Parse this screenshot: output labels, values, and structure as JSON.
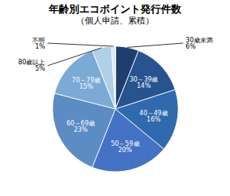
{
  "chart_data": {
    "type": "pie",
    "title": "年齢別エコポイント発行件数",
    "subtitle": "（個人申請、累積）",
    "categories": [
      "30歳未満",
      "30～39歳",
      "40～49歳",
      "50～59歳",
      "60～69歳",
      "70～79歳",
      "80歳以上",
      "不明"
    ],
    "values": [
      6,
      14,
      16,
      20,
      23,
      15,
      5,
      1
    ],
    "value_labels": [
      "6%",
      "14%",
      "16%",
      "20%",
      "23%",
      "15%",
      "5%",
      "1%"
    ],
    "colors": [
      "#1f3d6e",
      "#27538f",
      "#2e6aad",
      "#4472c4",
      "#5b8cc4",
      "#7baad6",
      "#b0cfe8",
      "#d9e8f5"
    ],
    "data_labels": true
  }
}
